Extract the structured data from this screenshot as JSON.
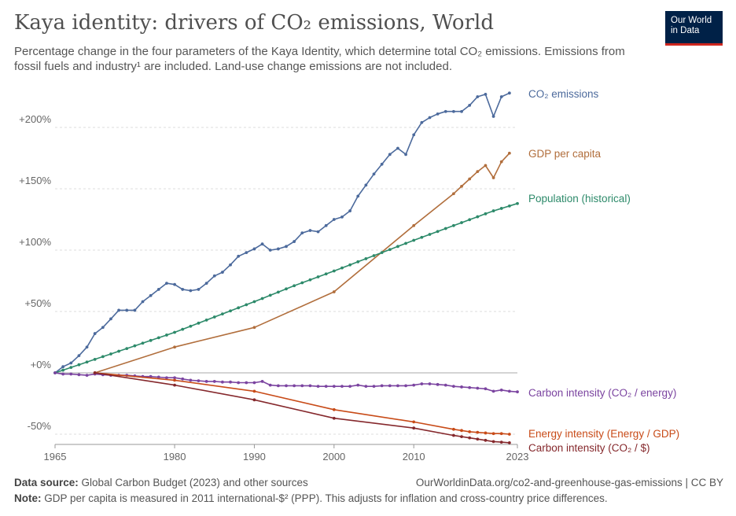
{
  "title": "Kaya identity: drivers of CO₂ emissions, World",
  "subtitle": "Percentage change in the four parameters of the Kaya Identity, which determine total CO₂ emissions. Emissions from fossil fuels and industry¹ are included. Land-use change emissions are not included.",
  "logo": {
    "line1": "Our World",
    "line2": "in Data"
  },
  "footer": {
    "source_label": "Data source:",
    "source_text": "Global Carbon Budget (2023) and other sources",
    "url": "OurWorldinData.org/co2-and-greenhouse-gas-emissions | CC BY",
    "note_label": "Note:",
    "note_text": "GDP per capita is measured in 2011 international-$² (PPP). This adjusts for inflation and cross-country price differences."
  },
  "chart_data": {
    "type": "line",
    "title": "Kaya identity: drivers of CO₂ emissions, World",
    "xlabel": "",
    "ylabel": "",
    "xlim": [
      1965,
      2023
    ],
    "ylim": [
      -50,
      230
    ],
    "x_ticks": [
      "1965",
      "1980",
      "1990",
      "2000",
      "2010",
      "2023"
    ],
    "y_ticks": [
      {
        "value": 200,
        "label": "+200%"
      },
      {
        "value": 150,
        "label": "+150%"
      },
      {
        "value": 100,
        "label": "+100%"
      },
      {
        "value": 50,
        "label": "+50%"
      },
      {
        "value": 0,
        "label": "+0%"
      },
      {
        "value": -50,
        "label": "-50%"
      }
    ],
    "grid": true,
    "series": [
      {
        "name": "CO₂ emissions",
        "color": "#4c6a9c",
        "points": [
          [
            1965,
            0
          ],
          [
            1966,
            5
          ],
          [
            1967,
            8
          ],
          [
            1968,
            14
          ],
          [
            1969,
            21
          ],
          [
            1970,
            32
          ],
          [
            1971,
            37
          ],
          [
            1972,
            44
          ],
          [
            1973,
            51
          ],
          [
            1974,
            51
          ],
          [
            1975,
            51
          ],
          [
            1976,
            58
          ],
          [
            1977,
            63
          ],
          [
            1978,
            68
          ],
          [
            1979,
            73
          ],
          [
            1980,
            72
          ],
          [
            1981,
            68
          ],
          [
            1982,
            67
          ],
          [
            1983,
            68
          ],
          [
            1984,
            73
          ],
          [
            1985,
            79
          ],
          [
            1986,
            82
          ],
          [
            1987,
            88
          ],
          [
            1988,
            95
          ],
          [
            1989,
            98
          ],
          [
            1990,
            101
          ],
          [
            1991,
            105
          ],
          [
            1992,
            100
          ],
          [
            1993,
            101
          ],
          [
            1994,
            103
          ],
          [
            1995,
            107
          ],
          [
            1996,
            114
          ],
          [
            1997,
            116
          ],
          [
            1998,
            115
          ],
          [
            1999,
            120
          ],
          [
            2000,
            125
          ],
          [
            2001,
            127
          ],
          [
            2002,
            132
          ],
          [
            2003,
            144
          ],
          [
            2004,
            153
          ],
          [
            2005,
            162
          ],
          [
            2006,
            170
          ],
          [
            2007,
            178
          ],
          [
            2008,
            183
          ],
          [
            2009,
            178
          ],
          [
            2010,
            194
          ],
          [
            2011,
            204
          ],
          [
            2012,
            208
          ],
          [
            2013,
            211
          ],
          [
            2014,
            213
          ],
          [
            2015,
            213
          ],
          [
            2016,
            213
          ],
          [
            2017,
            218
          ],
          [
            2018,
            225
          ],
          [
            2019,
            227
          ],
          [
            2020,
            209
          ],
          [
            2021,
            225
          ],
          [
            2022,
            228
          ]
        ]
      },
      {
        "name": "GDP per capita",
        "color": "#b16e3c",
        "points": [
          [
            1970,
            0
          ],
          [
            1980,
            21
          ],
          [
            1990,
            37
          ],
          [
            2000,
            66
          ],
          [
            2010,
            120
          ],
          [
            2015,
            146
          ],
          [
            2016,
            152
          ],
          [
            2017,
            158
          ],
          [
            2018,
            164
          ],
          [
            2019,
            169
          ],
          [
            2020,
            159
          ],
          [
            2021,
            172
          ],
          [
            2022,
            179
          ]
        ]
      },
      {
        "name": "Population (historical)",
        "color": "#2d8a6a",
        "points": [
          [
            1965,
            0
          ],
          [
            1966,
            2.2
          ],
          [
            1967,
            4.4
          ],
          [
            1968,
            6.6
          ],
          [
            1969,
            8.8
          ],
          [
            1970,
            11
          ],
          [
            1971,
            13.2
          ],
          [
            1972,
            15.4
          ],
          [
            1973,
            17.6
          ],
          [
            1974,
            19.8
          ],
          [
            1975,
            22
          ],
          [
            1976,
            24.2
          ],
          [
            1977,
            26.4
          ],
          [
            1978,
            28.6
          ],
          [
            1979,
            30.8
          ],
          [
            1980,
            33
          ],
          [
            1981,
            35.5
          ],
          [
            1982,
            38
          ],
          [
            1983,
            40.5
          ],
          [
            1984,
            43
          ],
          [
            1985,
            45.5
          ],
          [
            1986,
            48
          ],
          [
            1987,
            50.5
          ],
          [
            1988,
            53
          ],
          [
            1989,
            55.5
          ],
          [
            1990,
            58
          ],
          [
            1991,
            60.6
          ],
          [
            1992,
            63.2
          ],
          [
            1993,
            65.8
          ],
          [
            1994,
            68.4
          ],
          [
            1995,
            71
          ],
          [
            1996,
            73.4
          ],
          [
            1997,
            75.8
          ],
          [
            1998,
            78.2
          ],
          [
            1999,
            80.6
          ],
          [
            2000,
            83
          ],
          [
            2001,
            85.5
          ],
          [
            2002,
            88
          ],
          [
            2003,
            90.5
          ],
          [
            2004,
            93
          ],
          [
            2005,
            95.5
          ],
          [
            2006,
            98
          ],
          [
            2007,
            100.5
          ],
          [
            2008,
            103
          ],
          [
            2009,
            105.5
          ],
          [
            2010,
            108
          ],
          [
            2011,
            110.4
          ],
          [
            2012,
            112.8
          ],
          [
            2013,
            115.2
          ],
          [
            2014,
            117.6
          ],
          [
            2015,
            120
          ],
          [
            2016,
            122.4
          ],
          [
            2017,
            124.8
          ],
          [
            2018,
            127.2
          ],
          [
            2019,
            129.6
          ],
          [
            2020,
            132
          ],
          [
            2021,
            134
          ],
          [
            2022,
            136
          ],
          [
            2023,
            138
          ]
        ]
      },
      {
        "name": "Carbon intensity (CO₂ / energy)",
        "color": "#7b44a0",
        "points": [
          [
            1965,
            0
          ],
          [
            1966,
            -1
          ],
          [
            1967,
            -1
          ],
          [
            1968,
            -1.5
          ],
          [
            1969,
            -2
          ],
          [
            1970,
            -1
          ],
          [
            1971,
            -1.5
          ],
          [
            1972,
            -2
          ],
          [
            1973,
            -2
          ],
          [
            1974,
            -2
          ],
          [
            1975,
            -2.5
          ],
          [
            1976,
            -3
          ],
          [
            1977,
            -3
          ],
          [
            1978,
            -3.5
          ],
          [
            1979,
            -4
          ],
          [
            1980,
            -4
          ],
          [
            1981,
            -5
          ],
          [
            1982,
            -6
          ],
          [
            1983,
            -6.5
          ],
          [
            1984,
            -7
          ],
          [
            1985,
            -7
          ],
          [
            1986,
            -7.5
          ],
          [
            1987,
            -7.5
          ],
          [
            1988,
            -8
          ],
          [
            1989,
            -8
          ],
          [
            1990,
            -8
          ],
          [
            1991,
            -7
          ],
          [
            1992,
            -10
          ],
          [
            1993,
            -10.5
          ],
          [
            1994,
            -10.5
          ],
          [
            1995,
            -10.5
          ],
          [
            1996,
            -10.5
          ],
          [
            1997,
            -10.5
          ],
          [
            1998,
            -11
          ],
          [
            1999,
            -11
          ],
          [
            2000,
            -11
          ],
          [
            2001,
            -11
          ],
          [
            2002,
            -11
          ],
          [
            2003,
            -10
          ],
          [
            2004,
            -11
          ],
          [
            2005,
            -11
          ],
          [
            2006,
            -10.5
          ],
          [
            2007,
            -10.5
          ],
          [
            2008,
            -10.5
          ],
          [
            2009,
            -10.5
          ],
          [
            2010,
            -10
          ],
          [
            2011,
            -9
          ],
          [
            2012,
            -9
          ],
          [
            2013,
            -9.5
          ],
          [
            2014,
            -10
          ],
          [
            2015,
            -11
          ],
          [
            2016,
            -11.5
          ],
          [
            2017,
            -12
          ],
          [
            2018,
            -12.5
          ],
          [
            2019,
            -13
          ],
          [
            2020,
            -15
          ],
          [
            2021,
            -14
          ],
          [
            2022,
            -15
          ],
          [
            2023,
            -15.5
          ]
        ]
      },
      {
        "name": "Energy intensity (Energy / GDP)",
        "color": "#c84b18",
        "points": [
          [
            1970,
            0
          ],
          [
            1980,
            -6
          ],
          [
            1990,
            -15
          ],
          [
            2000,
            -30
          ],
          [
            2010,
            -40
          ],
          [
            2015,
            -46
          ],
          [
            2016,
            -47
          ],
          [
            2017,
            -48
          ],
          [
            2018,
            -48.5
          ],
          [
            2019,
            -49
          ],
          [
            2020,
            -49.5
          ],
          [
            2021,
            -49.5
          ],
          [
            2022,
            -50
          ]
        ]
      },
      {
        "name": "Carbon intensity (CO₂ / $)",
        "color": "#85282c",
        "points": [
          [
            1970,
            0
          ],
          [
            1980,
            -10
          ],
          [
            1990,
            -22
          ],
          [
            2000,
            -37
          ],
          [
            2010,
            -45
          ],
          [
            2015,
            -51
          ],
          [
            2016,
            -52
          ],
          [
            2017,
            -53
          ],
          [
            2018,
            -54
          ],
          [
            2019,
            -55
          ],
          [
            2020,
            -56
          ],
          [
            2021,
            -56.5
          ],
          [
            2022,
            -57
          ]
        ]
      }
    ]
  }
}
